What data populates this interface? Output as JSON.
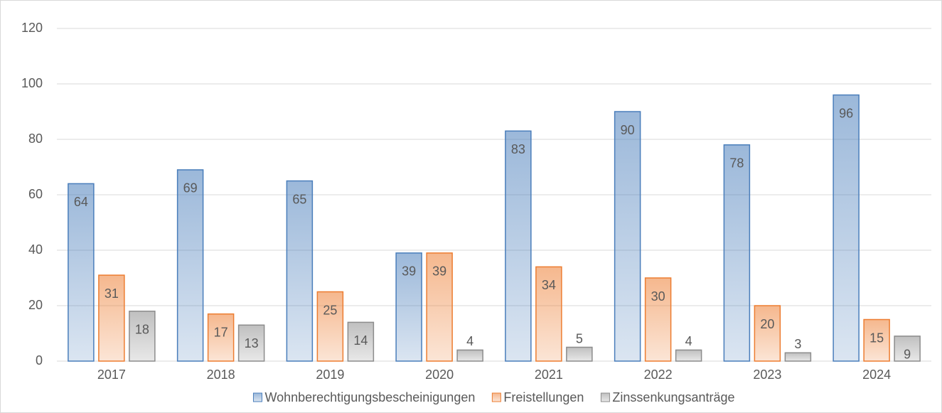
{
  "chart_data": {
    "type": "bar",
    "categories": [
      "2017",
      "2018",
      "2019",
      "2020",
      "2021",
      "2022",
      "2023",
      "2024"
    ],
    "series": [
      {
        "name": "Wohnberechtigungsbescheinigungen",
        "color": "#4a7ebb",
        "values": [
          64,
          69,
          65,
          39,
          83,
          90,
          78,
          96
        ]
      },
      {
        "name": "Freistellungen",
        "color": "#ed7d31",
        "values": [
          31,
          17,
          25,
          39,
          34,
          30,
          20,
          15
        ]
      },
      {
        "name": "Zinssenkungsanträge",
        "color": "#8c8c8c",
        "values": [
          18,
          13,
          14,
          4,
          5,
          4,
          3,
          9
        ]
      }
    ],
    "ylim": [
      0,
      120
    ],
    "yticks": [
      0,
      20,
      40,
      60,
      80,
      100,
      120
    ],
    "grid": true,
    "legend": "bottom"
  }
}
